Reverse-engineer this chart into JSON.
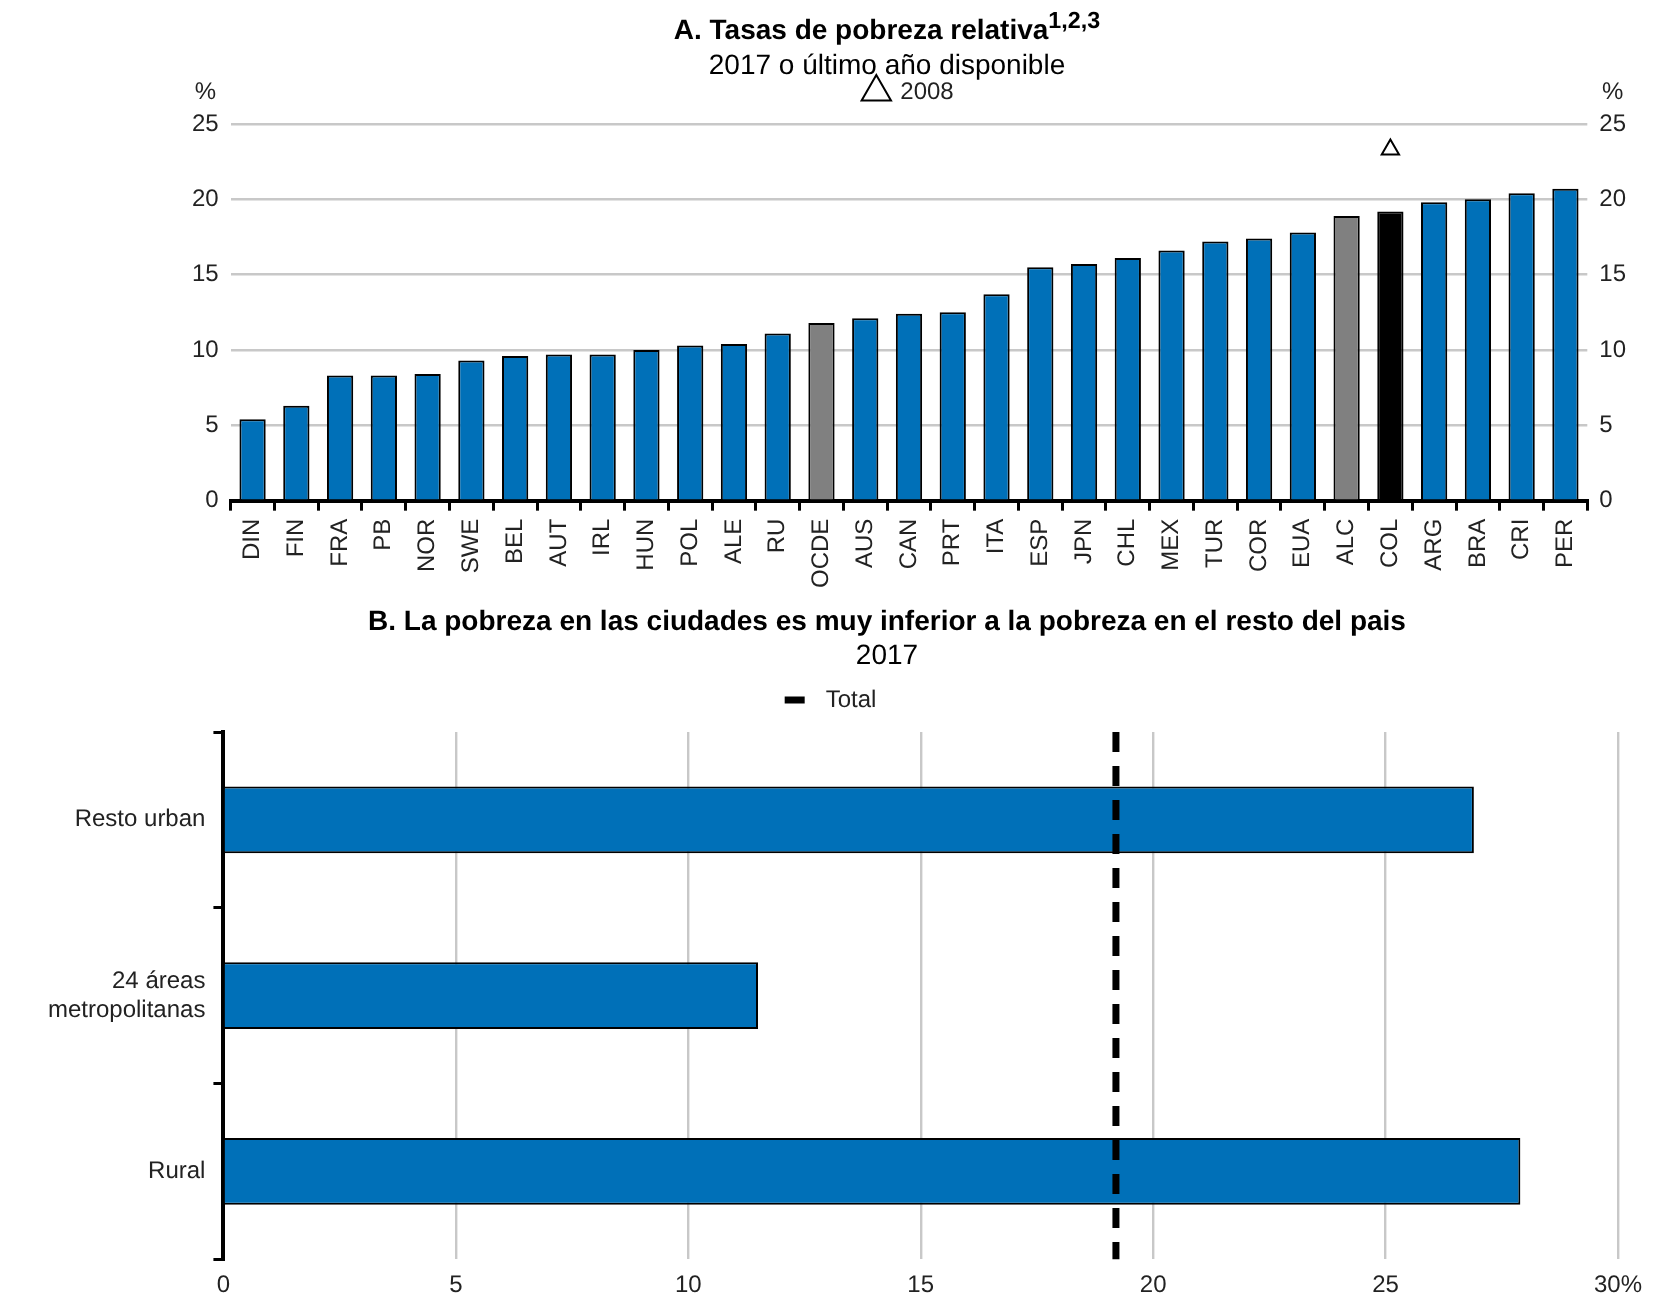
{
  "chart_data": [
    {
      "type": "bar",
      "title": "A. Tasas de pobreza relativa$^{1,2,3}$",
      "subtitle": "2017 o último  año disponible",
      "ylabel": "%",
      "y2label": "%",
      "categories": [
        "DIN",
        "FIN",
        "FRA",
        "PB",
        "NOR",
        "SWE",
        "BEL",
        "AUT",
        "IRL",
        "HUN",
        "POL",
        "ALE",
        "RU",
        "OCDE",
        "AUS",
        "CAN",
        "PRT",
        "ITA",
        "ESP",
        "JPN",
        "CHL",
        "MEX",
        "TUR",
        "COR",
        "EUA",
        "ALC",
        "COL",
        "ARG",
        "BRA",
        "CRI",
        "PER"
      ],
      "series": [
        {
          "type": "bar",
          "colors": [
            "#0070b8",
            "#0070b8",
            "#0070b8",
            "#0070b8",
            "#0070b8",
            "#0070b8",
            "#0070b8",
            "#0070b8",
            "#0070b8",
            "#0070b8",
            "#0070b8",
            "#0070b8",
            "#0070b8",
            "#808080",
            "#0070b8",
            "#0070b8",
            "#0070b8",
            "#0070b8",
            "#0070b8",
            "#0070b8",
            "#0070b8",
            "#0070b8",
            "#0070b8",
            "#0070b8",
            "#0070b8",
            "#808080",
            "#000000",
            "#0070b8",
            "#0070b8",
            "#0070b8",
            "#0070b8"
          ],
          "values": [
            5.4,
            6.3,
            8.3,
            8.3,
            8.4,
            9.3,
            9.6,
            9.7,
            9.7,
            10.0,
            10.3,
            10.4,
            11.1,
            11.8,
            12.1,
            12.4,
            12.5,
            13.7,
            15.5,
            15.7,
            16.1,
            16.6,
            17.2,
            17.4,
            17.8,
            18.9,
            19.2,
            19.8,
            20.0,
            20.4,
            20.7
          ]
        },
        {
          "type": "scatter",
          "name": "2008",
          "color": "#000000",
          "values": [
            null,
            null,
            null,
            null,
            null,
            null,
            null,
            null,
            null,
            null,
            null,
            null,
            null,
            null,
            null,
            null,
            null,
            null,
            null,
            null,
            null,
            null,
            null,
            null,
            null,
            null,
            23.3,
            null,
            null,
            null,
            null
          ]
        }
      ],
      "marker": "triangle",
      "ylim": [
        0,
        25
      ],
      "yticks": [
        0,
        5,
        10,
        15,
        20,
        25
      ],
      "y2lim": [
        0,
        25
      ],
      "y2ticks": [
        0,
        5,
        10,
        15,
        20,
        25
      ],
      "grid": "y",
      "legend": "top"
    },
    {
      "type": "bar",
      "orientation": "horizontal",
      "title": "B. La pobreza en las ciudades es muy inferior a la pobreza en el resto del pais",
      "subtitle": "2017",
      "categories": [
        "Resto urban",
        "24 áreas metropolitanas",
        "Rural"
      ],
      "color": "#0070b8",
      "values": [
        26.9,
        11.5,
        27.9
      ],
      "xlim": [
        0,
        30
      ],
      "xticks": [
        0,
        5,
        10,
        15,
        20,
        25,
        {
          "value": 30,
          "label": "30%"
        }
      ],
      "grid": "x",
      "legend": "top",
      "ref_lines": [
        {
          "axis": "x",
          "value": 19.2,
          "label": "Total",
          "color": "#000000",
          "line_style": "dashed"
        }
      ]
    }
  ]
}
